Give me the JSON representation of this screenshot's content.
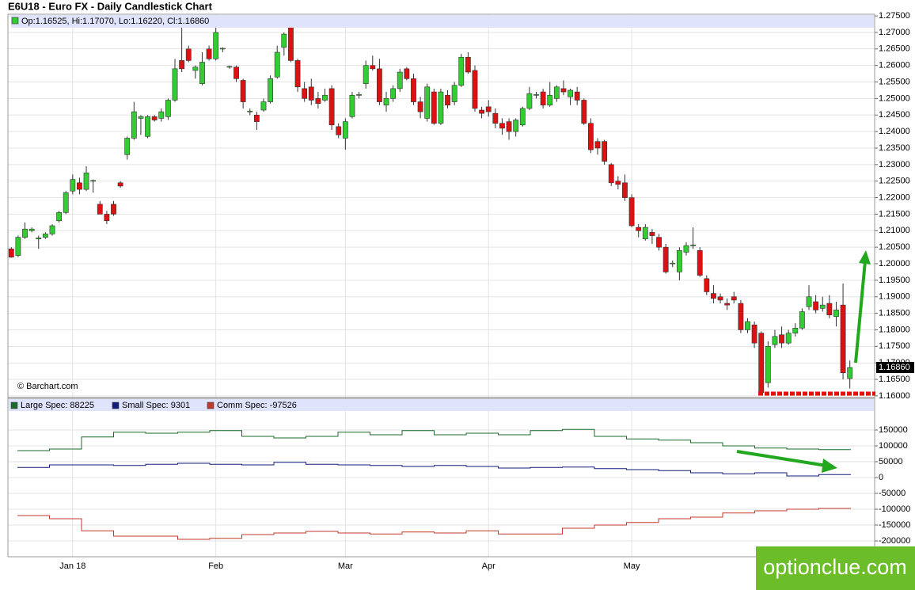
{
  "chart_data": [
    {
      "type": "candlestick",
      "title": "E6U18 - Euro FX - Daily Candlestick Chart",
      "info_label": "Op:1.16525, Hi:1.17070, Lo:1.16220, Cl:1.16860",
      "source": "© Barchart.com",
      "last_price_label": "1.16860",
      "watermark": "optionclue.com",
      "up_color": "#33cc33",
      "down_color": "#dd1111",
      "grid": true,
      "categories": [
        null,
        null,
        null,
        null,
        null,
        null,
        null,
        null,
        null,
        "Jan 18",
        null,
        null,
        null,
        null,
        null,
        null,
        null,
        null,
        null,
        null,
        null,
        null,
        null,
        null,
        null,
        null,
        null,
        null,
        null,
        null,
        "Feb",
        null,
        null,
        null,
        null,
        null,
        null,
        null,
        null,
        null,
        null,
        null,
        null,
        null,
        null,
        null,
        null,
        null,
        null,
        "Mar",
        null,
        null,
        null,
        null,
        null,
        null,
        null,
        null,
        null,
        null,
        null,
        null,
        null,
        null,
        null,
        null,
        null,
        null,
        null,
        null,
        "Apr",
        null,
        null,
        null,
        null,
        null,
        null,
        null,
        null,
        null,
        null,
        null,
        null,
        null,
        null,
        null,
        null,
        null,
        null,
        null,
        null,
        "May",
        null,
        null,
        null,
        null,
        null,
        null,
        null,
        null,
        null,
        null,
        null,
        null,
        null,
        null,
        null,
        null,
        null,
        null,
        null,
        null,
        null,
        null,
        null,
        null,
        null,
        null,
        null,
        null,
        null,
        null,
        null,
        null
      ],
      "open": [
        1.2045,
        1.2025,
        1.208,
        1.21,
        1.2075,
        1.208,
        1.209,
        1.213,
        1.2155,
        1.222,
        1.2245,
        1.2225,
        1.225,
        1.218,
        1.215,
        1.218,
        1.2245,
        1.233,
        1.238,
        1.244,
        1.2385,
        1.2445,
        1.244,
        1.2445,
        1.2495,
        1.2615,
        1.265,
        1.2585,
        1.2545,
        1.265,
        1.262,
        1.265,
        1.2595,
        1.2595,
        1.2555,
        1.246,
        1.245,
        1.2465,
        1.249,
        1.2565,
        1.2655,
        1.2725,
        1.2615,
        1.253,
        1.2535,
        1.25,
        1.2495,
        1.253,
        1.2415,
        1.238,
        1.2445,
        1.251,
        1.2545,
        1.26,
        1.259,
        1.248,
        1.25,
        1.253,
        1.259,
        1.256,
        1.249,
        1.244,
        1.252,
        1.2425,
        1.251,
        1.249,
        1.254,
        1.2625,
        1.2585,
        1.2465,
        1.2475,
        1.2455,
        1.2425,
        1.243,
        1.24,
        1.242,
        1.247,
        1.251,
        1.252,
        1.248,
        1.25,
        1.253,
        1.2505,
        1.252,
        1.2495,
        1.2425,
        1.237,
        1.237,
        1.23,
        1.225,
        1.2245,
        1.22,
        1.211,
        1.2075,
        1.2095,
        1.208,
        1.205,
        1.2,
        1.1975,
        1.2035,
        1.2055,
        1.204,
        1.1955,
        1.191,
        1.19,
        1.188,
        1.19,
        1.188,
        1.18,
        1.1815,
        1.179,
        1.164,
        1.1755,
        1.1785,
        1.176,
        1.179,
        1.1805,
        1.187,
        1.1885,
        1.1865,
        1.188,
        1.184,
        1.1875,
        1.16525
      ],
      "high": [
        1.205,
        1.2085,
        1.2125,
        1.211,
        1.2085,
        1.2095,
        1.212,
        1.216,
        1.222,
        1.227,
        1.226,
        1.2295,
        1.2255,
        1.219,
        1.216,
        1.219,
        1.225,
        1.2385,
        1.249,
        1.245,
        1.245,
        1.245,
        1.247,
        1.25,
        1.262,
        1.2715,
        1.266,
        1.26,
        1.264,
        1.266,
        1.272,
        1.2655,
        1.26,
        1.26,
        1.256,
        1.247,
        1.246,
        1.25,
        1.257,
        1.266,
        1.27,
        1.2735,
        1.262,
        1.255,
        1.256,
        1.252,
        1.253,
        1.254,
        1.2425,
        1.244,
        1.252,
        1.252,
        1.2615,
        1.263,
        1.262,
        1.252,
        1.254,
        1.259,
        1.2595,
        1.2575,
        1.2505,
        1.2545,
        1.253,
        1.253,
        1.2525,
        1.255,
        1.2635,
        1.264,
        1.26,
        1.2475,
        1.2495,
        1.247,
        1.244,
        1.244,
        1.244,
        1.2475,
        1.2535,
        1.252,
        1.253,
        1.255,
        1.254,
        1.2555,
        1.253,
        1.2535,
        1.25,
        1.244,
        1.238,
        1.2375,
        1.2305,
        1.2265,
        1.227,
        1.221,
        1.212,
        1.212,
        1.2105,
        1.209,
        1.206,
        1.201,
        1.205,
        1.2065,
        1.211,
        1.205,
        1.1965,
        1.1935,
        1.191,
        1.1895,
        1.1915,
        1.189,
        1.1835,
        1.1825,
        1.1795,
        1.1765,
        1.18,
        1.181,
        1.18,
        1.182,
        1.1865,
        1.1935,
        1.1905,
        1.19,
        1.1905,
        1.1885,
        1.194,
        1.1707
      ],
      "low": [
        1.2018,
        1.202,
        1.2075,
        1.2095,
        1.2045,
        1.2075,
        1.2085,
        1.2125,
        1.215,
        1.221,
        1.221,
        1.222,
        1.2215,
        1.215,
        1.212,
        1.2145,
        1.223,
        1.2315,
        1.2375,
        1.239,
        1.238,
        1.243,
        1.243,
        1.2435,
        1.249,
        1.258,
        1.261,
        1.256,
        1.254,
        1.2615,
        1.2615,
        1.264,
        1.259,
        1.255,
        1.247,
        1.245,
        1.2405,
        1.246,
        1.2485,
        1.256,
        1.263,
        1.261,
        1.252,
        1.249,
        1.248,
        1.247,
        1.249,
        1.2405,
        1.238,
        1.2345,
        1.244,
        1.25,
        1.253,
        1.2585,
        1.248,
        1.246,
        1.249,
        1.252,
        1.2555,
        1.248,
        1.244,
        1.243,
        1.242,
        1.242,
        1.247,
        1.248,
        1.2535,
        1.2575,
        1.246,
        1.244,
        1.2445,
        1.241,
        1.239,
        1.2375,
        1.2385,
        1.2415,
        1.2465,
        1.25,
        1.247,
        1.2475,
        1.249,
        1.251,
        1.248,
        1.248,
        1.242,
        1.2335,
        1.233,
        1.23,
        1.2235,
        1.2225,
        1.219,
        1.211,
        1.208,
        1.207,
        1.206,
        1.204,
        1.197,
        1.199,
        1.195,
        1.2025,
        1.2045,
        1.196,
        1.1905,
        1.188,
        1.188,
        1.186,
        1.188,
        1.179,
        1.179,
        1.1745,
        1.1605,
        1.1625,
        1.1745,
        1.1745,
        1.1755,
        1.178,
        1.18,
        1.186,
        1.185,
        1.1855,
        1.1835,
        1.181,
        1.165,
        1.1622
      ],
      "close": [
        1.202,
        1.208,
        1.2105,
        1.2105,
        1.2078,
        1.209,
        1.2115,
        1.2155,
        1.2215,
        1.2255,
        1.2225,
        1.2275,
        1.2252,
        1.215,
        1.213,
        1.215,
        1.2235,
        1.238,
        1.246,
        1.2445,
        1.2445,
        1.2435,
        1.246,
        1.2495,
        1.259,
        1.259,
        1.2615,
        1.2595,
        1.261,
        1.262,
        1.27,
        1.2652,
        1.2597,
        1.256,
        1.249,
        1.2462,
        1.243,
        1.249,
        1.256,
        1.264,
        1.2695,
        1.2615,
        1.2535,
        1.25,
        1.2495,
        1.2485,
        1.251,
        1.242,
        1.239,
        1.243,
        1.251,
        1.2512,
        1.26,
        1.259,
        1.249,
        1.25,
        1.253,
        1.258,
        1.256,
        1.249,
        1.246,
        1.2535,
        1.2425,
        1.252,
        1.248,
        1.254,
        1.2625,
        1.258,
        1.247,
        1.2455,
        1.246,
        1.2425,
        1.241,
        1.24,
        1.2435,
        1.247,
        1.2515,
        1.2512,
        1.248,
        1.251,
        1.2535,
        1.252,
        1.2525,
        1.2495,
        1.2425,
        1.2345,
        1.235,
        1.231,
        1.2245,
        1.224,
        1.22,
        1.2115,
        1.21,
        1.211,
        1.2085,
        1.205,
        1.1975,
        1.2002,
        1.204,
        1.2055,
        1.2057,
        1.1965,
        1.1915,
        1.1895,
        1.189,
        1.1875,
        1.189,
        1.18,
        1.1825,
        1.176,
        1.161,
        1.175,
        1.178,
        1.176,
        1.179,
        1.1805,
        1.1855,
        1.19,
        1.186,
        1.1875,
        1.1845,
        1.186,
        1.167,
        1.1686
      ],
      "ylim": [
        1.1595,
        1.2755
      ],
      "yticks": [
        {
          "value": 1.16,
          "label": "1.16000"
        },
        {
          "value": 1.165,
          "label": "1.16500"
        },
        {
          "value": 1.17,
          "label": "1.17000"
        },
        {
          "value": 1.175,
          "label": "1.17500"
        },
        {
          "value": 1.18,
          "label": "1.18000"
        },
        {
          "value": 1.185,
          "label": "1.18500"
        },
        {
          "value": 1.19,
          "label": "1.19000"
        },
        {
          "value": 1.195,
          "label": "1.19500"
        },
        {
          "value": 1.2,
          "label": "1.20000"
        },
        {
          "value": 1.205,
          "label": "1.20500"
        },
        {
          "value": 1.21,
          "label": "1.21000"
        },
        {
          "value": 1.215,
          "label": "1.21500"
        },
        {
          "value": 1.22,
          "label": "1.22000"
        },
        {
          "value": 1.225,
          "label": "1.22500"
        },
        {
          "value": 1.23,
          "label": "1.23000"
        },
        {
          "value": 1.235,
          "label": "1.23500"
        },
        {
          "value": 1.24,
          "label": "1.24000"
        },
        {
          "value": 1.245,
          "label": "1.24500"
        },
        {
          "value": 1.25,
          "label": "1.25000"
        },
        {
          "value": 1.255,
          "label": "1.25500"
        },
        {
          "value": 1.26,
          "label": "1.26000"
        },
        {
          "value": 1.265,
          "label": "1.26500"
        },
        {
          "value": 1.27,
          "label": "1.27000"
        },
        {
          "value": 1.275,
          "label": "1.27500"
        }
      ]
    },
    {
      "type": "step",
      "categories": [
        null,
        null,
        null,
        null,
        null,
        null,
        null,
        null,
        null,
        null,
        null,
        null,
        null,
        null,
        null,
        null,
        null,
        null,
        null,
        null,
        null,
        null,
        null,
        null,
        null,
        null
      ],
      "series": [
        {
          "name": "Large Spec",
          "color": "#1a6b2a",
          "values": [
            85000,
            90000,
            128000,
            143000,
            140000,
            143000,
            148000,
            130000,
            125000,
            130000,
            143000,
            135000,
            148000,
            135000,
            140000,
            135000,
            148000,
            152000,
            130000,
            122000,
            118000,
            110000,
            100000,
            93000,
            90000,
            88225
          ]
        },
        {
          "name": "Small Spec",
          "color": "#101d7a",
          "values": [
            32000,
            40000,
            40000,
            38000,
            42000,
            45000,
            42000,
            40000,
            48000,
            42000,
            40000,
            38000,
            35000,
            38000,
            35000,
            30000,
            32000,
            33000,
            28000,
            25000,
            22000,
            15000,
            12000,
            15000,
            5000,
            9301
          ]
        },
        {
          "name": "Comm Spec",
          "color": "#c0392b",
          "values": [
            -120000,
            -130000,
            -168000,
            -185000,
            -185000,
            -195000,
            -192000,
            -180000,
            -175000,
            -170000,
            -175000,
            -178000,
            -172000,
            -175000,
            -168000,
            -178000,
            -178000,
            -160000,
            -150000,
            -142000,
            -130000,
            -125000,
            -112000,
            -105000,
            -100000,
            -97526
          ]
        }
      ],
      "ylim": [
        -250000,
        250000
      ],
      "yticks": [
        150000,
        100000,
        50000,
        0,
        -50000,
        -100000,
        -150000,
        -200000
      ],
      "grid": true
    }
  ]
}
